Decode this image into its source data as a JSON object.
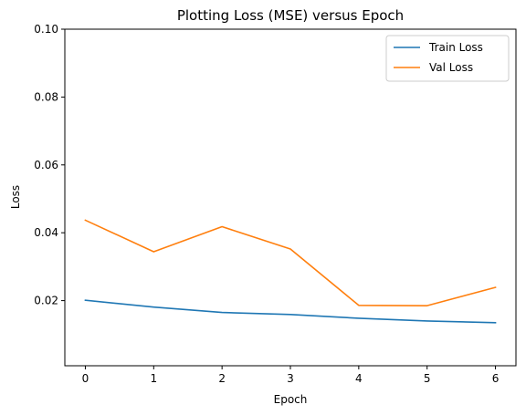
{
  "chart_data": {
    "type": "line",
    "title": "Plotting Loss (MSE) versus Epoch",
    "xlabel": "Epoch",
    "ylabel": "Loss",
    "x": [
      0,
      1,
      2,
      3,
      4,
      5,
      6
    ],
    "xlim": [
      -0.3,
      6.3
    ],
    "ylim": [
      0.0008,
      0.1
    ],
    "xticks": [
      "0",
      "1",
      "2",
      "3",
      "4",
      "5",
      "6"
    ],
    "yticks": [
      "0.02",
      "0.04",
      "0.06",
      "0.08",
      "0.10"
    ],
    "ytick_values": [
      0.02,
      0.04,
      0.06,
      0.08,
      0.1
    ],
    "grid": false,
    "legend_position": "top-right",
    "series": [
      {
        "name": "Train Loss",
        "color": "#1f77b4",
        "values": [
          0.0201,
          0.0181,
          0.0165,
          0.0159,
          0.0148,
          0.014,
          0.0135
        ]
      },
      {
        "name": "Val Loss",
        "color": "#ff7f0e",
        "values": [
          0.0437,
          0.0344,
          0.0418,
          0.0352,
          0.0186,
          0.0185,
          0.0239
        ]
      }
    ]
  }
}
